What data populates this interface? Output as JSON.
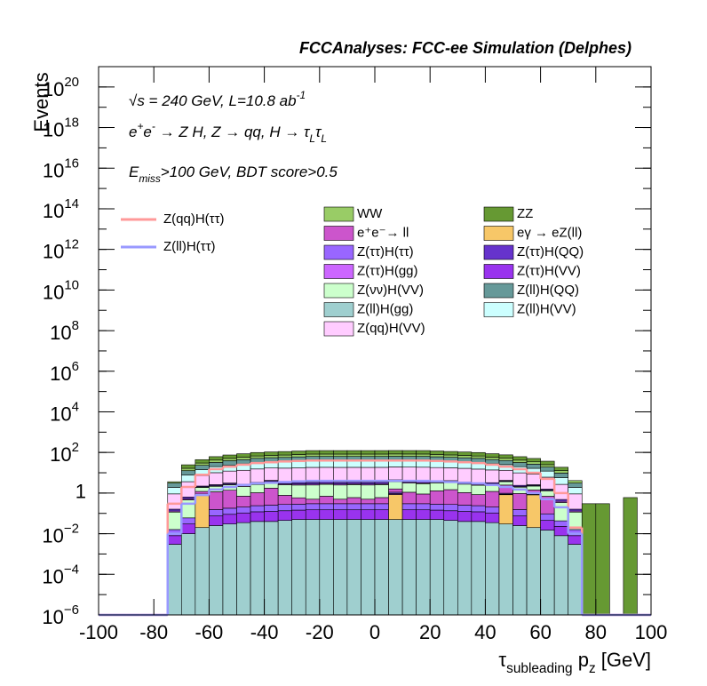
{
  "chart_data": {
    "type": "stacked-histogram",
    "title": "FCCAnalyses: FCC-ee Simulation (Delphes)",
    "annotations": [
      [
        {
          "text": "√s = 240 GeV, L=10.8 ab"
        },
        {
          "text": "-1",
          "pos": "super"
        }
      ],
      [
        {
          "text": "e"
        },
        {
          "text": "+",
          "pos": "super"
        },
        {
          "text": "e"
        },
        {
          "text": "-",
          "pos": "super"
        },
        {
          "text": " → Z H, Z  → qq, H  →  τ"
        },
        {
          "text": "L",
          "pos": "sub"
        },
        {
          "text": "τ"
        },
        {
          "text": "L",
          "pos": "sub"
        }
      ],
      [
        {
          "text": "E"
        },
        {
          "text": "miss",
          "pos": "sub"
        },
        {
          "text": ">100 GeV, BDT score>0.5"
        }
      ]
    ],
    "xlabel": [
      {
        "text": "τ"
      },
      {
        "text": "subleading",
        "pos": "sub"
      },
      {
        "text": " p"
      },
      {
        "text": "z",
        "pos": "sub"
      },
      {
        "text": " [GeV]"
      }
    ],
    "ylabel": "Events",
    "log_y": true,
    "xlim": [
      -100,
      100
    ],
    "ylim": [
      1e-06,
      1e+21
    ],
    "xticks": [
      -100,
      -80,
      -60,
      -40,
      -20,
      0,
      20,
      40,
      60,
      80,
      100
    ],
    "yticks": [
      {
        "value": 1e-06,
        "label": "10",
        "exponent": "−6"
      },
      {
        "value": 0.0001,
        "label": "10",
        "exponent": "−4"
      },
      {
        "value": 0.01,
        "label": "10",
        "exponent": "−2"
      },
      1,
      {
        "value": 100.0,
        "label": "10",
        "exponent": "2"
      },
      {
        "value": 10000.0,
        "label": "10",
        "exponent": "4"
      },
      {
        "value": 1000000.0,
        "label": "10",
        "exponent": "6"
      },
      {
        "value": 100000000.0,
        "label": "10",
        "exponent": "8"
      },
      {
        "value": 10000000000.0,
        "label": "10",
        "exponent": "10"
      },
      {
        "value": 1000000000000.0,
        "label": "10",
        "exponent": "12"
      },
      {
        "value": 100000000000000.0,
        "label": "10",
        "exponent": "14"
      },
      {
        "value": 1e+16,
        "label": "10",
        "exponent": "16"
      },
      {
        "value": 1e+18,
        "label": "10",
        "exponent": "18"
      },
      {
        "value": 1e+20,
        "label": "10",
        "exponent": "20"
      }
    ],
    "bins": [
      -100,
      -95,
      -90,
      -85,
      -80,
      -75,
      -70,
      -65,
      -60,
      -55,
      -50,
      -45,
      -40,
      -35,
      -30,
      -25,
      -20,
      -15,
      -10,
      -5,
      0,
      5,
      10,
      15,
      20,
      25,
      30,
      35,
      40,
      45,
      50,
      55,
      60,
      65,
      70,
      75,
      80,
      85,
      90,
      95,
      100
    ],
    "series": [
      {
        "name": "Z(ll)H(gg)",
        "color": "#9fcfcf",
        "values": [
          0,
          0,
          0,
          0,
          0,
          0.003,
          0.01,
          0.02,
          0.025,
          0.03,
          0.035,
          0.04,
          0.04,
          0.045,
          0.05,
          0.05,
          0.05,
          0.05,
          0.05,
          0.05,
          0.05,
          0.05,
          0.05,
          0.05,
          0.05,
          0.045,
          0.04,
          0.04,
          0.035,
          0.03,
          0.025,
          0.02,
          0.015,
          0.008,
          0.003,
          0,
          0,
          0,
          0,
          0
        ]
      },
      {
        "name": "eγ → eZ(ll)",
        "color": "#f7c768",
        "values": [
          0,
          0,
          0,
          0,
          0,
          0,
          0,
          0.8,
          0,
          0,
          0,
          0,
          0,
          0,
          0,
          0,
          0,
          0,
          0,
          0,
          0,
          0.8,
          0,
          0,
          0,
          0,
          0,
          0,
          0,
          0.8,
          0,
          0.8,
          0,
          0,
          0,
          0,
          0,
          0,
          0,
          0
        ]
      },
      {
        "name": "Z(ττ)H(VV)",
        "color": "#9933ee",
        "values": [
          0,
          0,
          0,
          0,
          0,
          0.005,
          0.02,
          0.035,
          0.05,
          0.06,
          0.07,
          0.08,
          0.085,
          0.09,
          0.095,
          0.1,
          0.1,
          0.1,
          0.1,
          0.1,
          0.1,
          0.1,
          0.1,
          0.1,
          0.095,
          0.09,
          0.085,
          0.08,
          0.07,
          0.06,
          0.05,
          0.04,
          0.03,
          0.015,
          0.005,
          0,
          0,
          0,
          0,
          0
        ]
      },
      {
        "name": "Z(ττ)H(ττ)",
        "color": "#9966ff",
        "values": [
          0,
          0,
          0,
          0,
          0,
          0.008,
          0.03,
          0.05,
          0.08,
          0.09,
          0.1,
          0.12,
          0.13,
          0.14,
          0.14,
          0.15,
          0.15,
          0.15,
          0.15,
          0.15,
          0.15,
          0.15,
          0.15,
          0.15,
          0.14,
          0.14,
          0.13,
          0.12,
          0.1,
          0.09,
          0.08,
          0.06,
          0.05,
          0.02,
          0.008,
          0,
          0,
          0,
          0,
          0
        ]
      },
      {
        "name": "e⁺e⁻→ ll",
        "color": "#cc55cc",
        "values": [
          0,
          0,
          0,
          0,
          0,
          0,
          0,
          0.3,
          1,
          1.2,
          0.5,
          0.8,
          1.5,
          0.5,
          0.3,
          0.2,
          0.4,
          0.2,
          0.3,
          0.2,
          0.3,
          0.5,
          0.8,
          0.6,
          1,
          1.2,
          0.8,
          0.6,
          1,
          1.5,
          0.8,
          0.5,
          0.6,
          0,
          0,
          0,
          0,
          0,
          0,
          0
        ]
      },
      {
        "name": "Z(νν)H(VV)",
        "color": "#ccffcc",
        "values": [
          0,
          0,
          0,
          0,
          0,
          0.1,
          0.4,
          0.7,
          1,
          1.2,
          1.4,
          1.6,
          1.7,
          1.8,
          1.9,
          2,
          2,
          2,
          2,
          2,
          2,
          2,
          2,
          2,
          1.9,
          1.8,
          1.7,
          1.6,
          1.4,
          1.2,
          1,
          0.8,
          0.6,
          0.3,
          0.1,
          0,
          0,
          0,
          0,
          0
        ]
      },
      {
        "name": "Z(ττ)H(gg)",
        "color": "#cc66ff",
        "values": [
          0,
          0,
          0,
          0,
          0,
          0.015,
          0.06,
          0.1,
          0.15,
          0.18,
          0.21,
          0.24,
          0.26,
          0.27,
          0.29,
          0.3,
          0.3,
          0.3,
          0.3,
          0.3,
          0.3,
          0.3,
          0.3,
          0.3,
          0.29,
          0.27,
          0.26,
          0.24,
          0.21,
          0.18,
          0.15,
          0.12,
          0.09,
          0.05,
          0.015,
          0,
          0,
          0,
          0,
          0
        ]
      },
      {
        "name": "Z(ττ)H(QQ)",
        "color": "#6633cc",
        "values": [
          0,
          0,
          0,
          0,
          0,
          0.03,
          0.12,
          0.21,
          0.3,
          0.36,
          0.42,
          0.48,
          0.51,
          0.54,
          0.57,
          0.6,
          0.6,
          0.6,
          0.6,
          0.6,
          0.6,
          0.6,
          0.6,
          0.6,
          0.57,
          0.54,
          0.51,
          0.48,
          0.42,
          0.36,
          0.3,
          0.24,
          0.18,
          0.09,
          0.03,
          0,
          0,
          0,
          0,
          0
        ]
      },
      {
        "name": "Z(qq)H(VV)",
        "color": "#ffccff",
        "values": [
          0,
          0,
          0,
          0,
          0,
          0.75,
          3,
          5,
          7.5,
          9,
          10.5,
          12,
          13,
          13.5,
          14,
          15,
          15,
          15,
          15,
          15,
          15,
          15,
          15,
          15,
          14,
          13.5,
          13,
          12,
          10.5,
          9,
          7.5,
          6,
          4.5,
          2.2,
          0.75,
          0,
          0,
          0,
          0,
          0
        ]
      },
      {
        "name": "Z(ll)H(VV)",
        "color": "#ccffff",
        "values": [
          0,
          0,
          0,
          0,
          0,
          1,
          4,
          7,
          10,
          12,
          14,
          16,
          17,
          18,
          19,
          20,
          20,
          20,
          20,
          20,
          20,
          20,
          20,
          20,
          19,
          18,
          17,
          16,
          14,
          12,
          10,
          8,
          6,
          3,
          1,
          0,
          0,
          0,
          0,
          0
        ]
      },
      {
        "name": "Z(ll)H(QQ)",
        "color": "#669999",
        "values": [
          0,
          0,
          0,
          0,
          0,
          1.2,
          5,
          9,
          12,
          15,
          17,
          20,
          21,
          22,
          24,
          25,
          25,
          25,
          25,
          25,
          25,
          25,
          25,
          25,
          24,
          22,
          21,
          20,
          17,
          15,
          12,
          10,
          7,
          4,
          1.2,
          0,
          0,
          0,
          0,
          0
        ]
      },
      {
        "name": "WW",
        "color": "#99cc66",
        "values": [
          0,
          0,
          0,
          0,
          0,
          0.5,
          4,
          7,
          10,
          12,
          14,
          16,
          17,
          18,
          19,
          20,
          20,
          20,
          20,
          20,
          20,
          20,
          20,
          20,
          19,
          18,
          17,
          16,
          14,
          12,
          10,
          8,
          6,
          3,
          1,
          0,
          0,
          0,
          0,
          0
        ]
      },
      {
        "name": "ZZ",
        "color": "#669933",
        "values": [
          0,
          0,
          0,
          0,
          0,
          0,
          8,
          14,
          20,
          24,
          28,
          32,
          34,
          36,
          38,
          40,
          40,
          40,
          40,
          40,
          40,
          40,
          40,
          40,
          38,
          36,
          34,
          32,
          28,
          24,
          20,
          16,
          12,
          6,
          0,
          0.3,
          0.3,
          0,
          0.6,
          0
        ]
      }
    ],
    "lines": [
      {
        "name": "Z(qq)H(ττ)",
        "color": "#ff9999",
        "values": [
          0,
          0,
          0,
          0,
          0,
          0.3,
          2,
          8,
          15,
          20,
          25,
          30,
          33,
          36,
          38,
          40,
          40,
          40,
          40,
          40,
          40,
          40,
          40,
          40,
          38,
          36,
          33,
          30,
          25,
          20,
          15,
          10,
          5,
          1,
          0.02,
          0,
          0,
          0,
          0,
          0
        ]
      },
      {
        "name": "Z(ll)H(ττ)",
        "color": "#9999ff",
        "values": [
          0,
          0,
          0,
          0,
          0,
          0.01,
          0.3,
          0.8,
          1.5,
          2,
          2.5,
          3,
          3.2,
          3.5,
          3.8,
          4,
          4,
          4,
          4,
          4,
          4,
          4,
          4,
          4,
          3.8,
          3.5,
          3.2,
          3,
          2.5,
          2,
          1.5,
          1,
          0.5,
          0.2,
          0.01,
          0,
          0,
          0,
          0,
          0
        ]
      }
    ]
  }
}
